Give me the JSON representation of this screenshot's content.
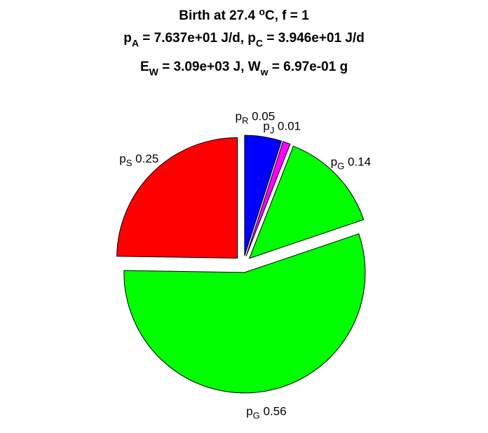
{
  "title": {
    "line1": {
      "prefix": "Birth at 27.4 ",
      "sup": "o",
      "suffix": "C, f = 1"
    },
    "line2": {
      "a": "p",
      "a_sub": "A",
      "a_val": " = 7.637e+01 J/d, ",
      "b": "p",
      "b_sub": "C",
      "b_val": " = 3.946e+01 J/d"
    },
    "line3": {
      "a": "E",
      "a_sub": "W",
      "a_val": " = 3.09e+03 J, ",
      "b": "W",
      "b_sub": "w",
      "b_val": " = 6.97e-01 g"
    }
  },
  "chart_data": {
    "type": "pie",
    "start": "top",
    "direction": "clockwise",
    "exploded": true,
    "slices": [
      {
        "sym": "p",
        "sub": "R",
        "value": 0.05,
        "label": "0.05",
        "color": "#0000ff"
      },
      {
        "sym": "p",
        "sub": "J",
        "value": 0.01,
        "label": "0.01",
        "color": "#ff00ff"
      },
      {
        "sym": "p",
        "sub": "G",
        "value": 0.14,
        "label": "0.14",
        "color": "#00ff00"
      },
      {
        "sym": "p",
        "sub": "G",
        "value": 0.56,
        "label": "0.56",
        "color": "#00ff00"
      },
      {
        "sym": "p",
        "sub": "S",
        "value": 0.25,
        "label": "0.25",
        "color": "#ff0000"
      }
    ]
  }
}
